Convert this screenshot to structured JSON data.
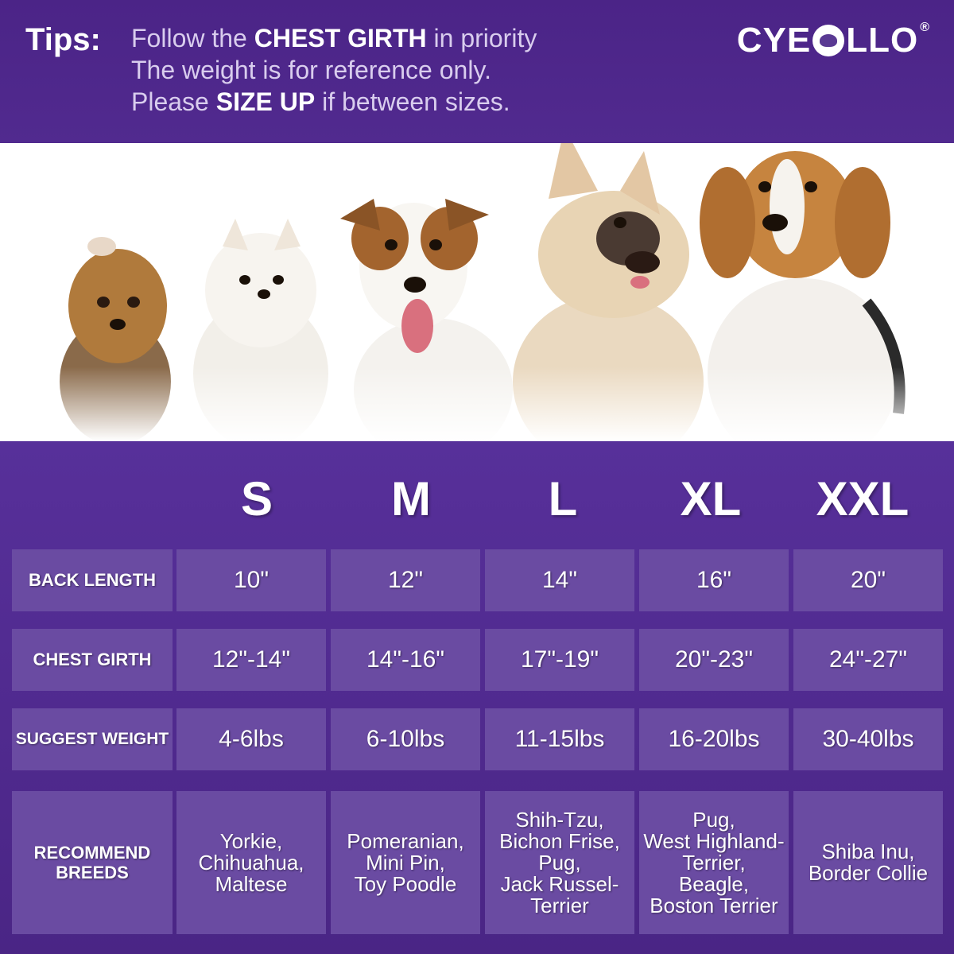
{
  "tips": {
    "label": "Tips:",
    "line1_pre": "Follow the ",
    "line1_bold": "CHEST GIRTH",
    "line1_post": " in priority",
    "line2": "The weight is for reference only.",
    "line3_pre": "Please ",
    "line3_bold": "SIZE UP",
    "line3_post": " if between sizes."
  },
  "brand": {
    "name_left": "CYE",
    "name_right": "LLO",
    "registered": "®"
  },
  "photo": {
    "dogs": [
      "yorkie-photo",
      "pomeranian-photo",
      "jack-russell-photo",
      "french-bulldog-photo",
      "beagle-photo"
    ]
  },
  "sizes": [
    "S",
    "M",
    "L",
    "XL",
    "XXL"
  ],
  "rows": [
    {
      "label": "BACK  LENGTH",
      "values": [
        "10\"",
        "12\"",
        "14\"",
        "16\"",
        "20\""
      ]
    },
    {
      "label": "CHEST GIRTH",
      "values": [
        "12\"-14\"",
        "14\"-16\"",
        "17\"-19\"",
        "20\"-23\"",
        "24\"-27\""
      ]
    },
    {
      "label": "SUGGEST WEIGHT",
      "values": [
        "4-6lbs",
        "6-10lbs",
        "11-15lbs",
        "16-20lbs",
        "30-40lbs"
      ]
    },
    {
      "label": "RECOMMEND\nBREEDS",
      "values": [
        "Yorkie,\nChihuahua,\nMaltese",
        "Pomeranian,\nMini Pin,\nToy Poodle",
        "Shih-Tzu,\nBichon Frise,\nPug,\nJack Russel-\nTerrier",
        "Pug,\nWest Highland-\nTerrier,\nBeagle,\nBoston Terrier",
        "Shiba Inu,\nBorder Collie"
      ]
    }
  ],
  "colors": {
    "banner": "#4b2487",
    "chart_bg": "#4a2585",
    "cell": "#6a4ba2",
    "text": "#ffffff"
  }
}
